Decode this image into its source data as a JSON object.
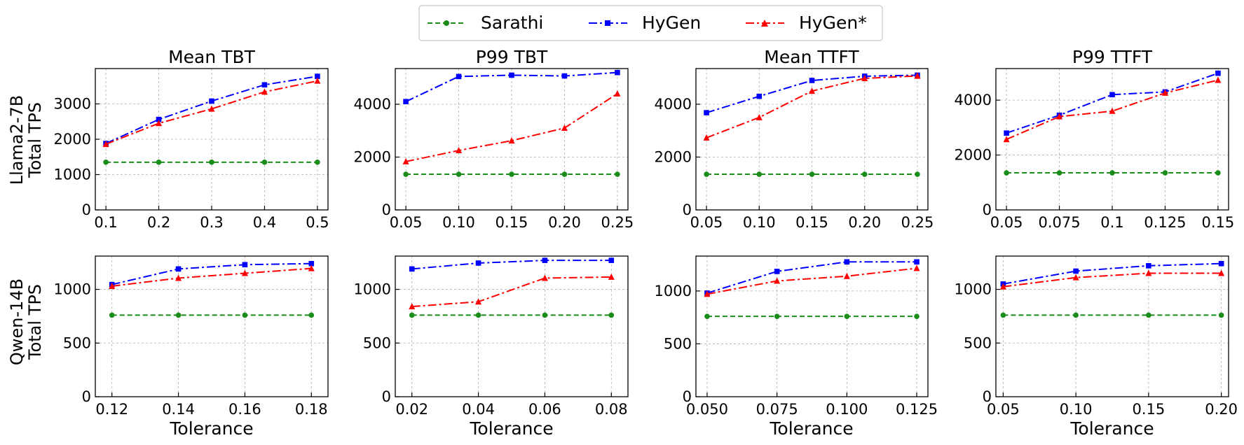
{
  "figure": {
    "xlabel": "Tolerance",
    "row_labels": [
      [
        "Llama2-7B",
        "Total TPS"
      ],
      [
        "Qwen-14B",
        "Total TPS"
      ]
    ],
    "column_titles": [
      "Mean TBT",
      "P99 TBT",
      "Mean TTFT",
      "P99 TTFT"
    ]
  },
  "legend": [
    {
      "name": "Sarathi",
      "color": "#1a8c1a",
      "marker": "circle",
      "dash": "dashed"
    },
    {
      "name": "HyGen",
      "color": "#0000ff",
      "marker": "square",
      "dash": "dashdot"
    },
    {
      "name": "HyGen*",
      "color": "#ff0000",
      "marker": "triangle",
      "dash": "dashdot"
    }
  ],
  "chart_data": [
    {
      "type": "line",
      "title": "Mean TBT",
      "ylabel": "Llama2-7B Total TPS",
      "xlabel": "",
      "x": [
        0.1,
        0.2,
        0.3,
        0.4,
        0.5
      ],
      "xticks": [
        "0.1",
        "0.2",
        "0.3",
        "0.4",
        "0.5"
      ],
      "yticks": [
        "0",
        "1000",
        "2000",
        "3000"
      ],
      "ylim": [
        0,
        4000
      ],
      "xlim": [
        0.08,
        0.52
      ],
      "series": [
        {
          "name": "Sarathi",
          "values": [
            1350,
            1350,
            1350,
            1350,
            1350
          ]
        },
        {
          "name": "HyGen",
          "values": [
            1880,
            2560,
            3080,
            3540,
            3780
          ]
        },
        {
          "name": "HyGen*",
          "values": [
            1860,
            2450,
            2860,
            3340,
            3650
          ]
        }
      ]
    },
    {
      "type": "line",
      "title": "P99 TBT",
      "ylabel": "",
      "xlabel": "",
      "x": [
        0.05,
        0.1,
        0.15,
        0.2,
        0.25
      ],
      "xticks": [
        "0.05",
        "0.10",
        "0.15",
        "0.20",
        "0.25"
      ],
      "yticks": [
        "0",
        "2000",
        "4000"
      ],
      "ylim": [
        0,
        5350
      ],
      "xlim": [
        0.04,
        0.26
      ],
      "series": [
        {
          "name": "Sarathi",
          "values": [
            1350,
            1350,
            1350,
            1350,
            1350
          ]
        },
        {
          "name": "HyGen",
          "values": [
            4100,
            5050,
            5100,
            5070,
            5200
          ]
        },
        {
          "name": "HyGen*",
          "values": [
            1830,
            2250,
            2620,
            3100,
            4400
          ]
        }
      ]
    },
    {
      "type": "line",
      "title": "Mean TTFT",
      "ylabel": "",
      "xlabel": "",
      "x": [
        0.05,
        0.1,
        0.15,
        0.2,
        0.25
      ],
      "xticks": [
        "0.05",
        "0.10",
        "0.15",
        "0.20",
        "0.25"
      ],
      "yticks": [
        "0",
        "2000",
        "4000"
      ],
      "ylim": [
        0,
        5350
      ],
      "xlim": [
        0.04,
        0.26
      ],
      "series": [
        {
          "name": "Sarathi",
          "values": [
            1350,
            1350,
            1350,
            1350,
            1350
          ]
        },
        {
          "name": "HyGen",
          "values": [
            3680,
            4300,
            4900,
            5060,
            5100
          ]
        },
        {
          "name": "HyGen*",
          "values": [
            2730,
            3500,
            4500,
            4980,
            5070
          ]
        }
      ]
    },
    {
      "type": "line",
      "title": "P99 TTFT",
      "ylabel": "",
      "xlabel": "",
      "x": [
        0.05,
        0.075,
        0.1,
        0.125,
        0.15
      ],
      "xticks": [
        "0.05",
        "0.075",
        "0.1",
        "0.125",
        "0.15"
      ],
      "yticks": [
        "0",
        "2000",
        "4000"
      ],
      "ylim": [
        0,
        5150
      ],
      "xlim": [
        0.045,
        0.155
      ],
      "series": [
        {
          "name": "Sarathi",
          "values": [
            1350,
            1350,
            1350,
            1350,
            1350
          ]
        },
        {
          "name": "HyGen",
          "values": [
            2800,
            3450,
            4200,
            4300,
            4980
          ]
        },
        {
          "name": "HyGen*",
          "values": [
            2570,
            3400,
            3600,
            4260,
            4730
          ]
        }
      ]
    },
    {
      "type": "line",
      "title": "",
      "ylabel": "Qwen-14B Total TPS",
      "xlabel": "Tolerance",
      "x": [
        0.12,
        0.14,
        0.16,
        0.18
      ],
      "xticks": [
        "0.12",
        "0.14",
        "0.16",
        "0.18"
      ],
      "yticks": [
        "0",
        "500",
        "1000"
      ],
      "ylim": [
        0,
        1310
      ],
      "xlim": [
        0.115,
        0.185
      ],
      "series": [
        {
          "name": "Sarathi",
          "values": [
            760,
            760,
            760,
            760
          ]
        },
        {
          "name": "HyGen",
          "values": [
            1045,
            1190,
            1230,
            1240
          ]
        },
        {
          "name": "HyGen*",
          "values": [
            1030,
            1105,
            1150,
            1195
          ]
        }
      ]
    },
    {
      "type": "line",
      "title": "",
      "ylabel": "",
      "xlabel": "Tolerance",
      "x": [
        0.02,
        0.04,
        0.06,
        0.08
      ],
      "xticks": [
        "0.02",
        "0.04",
        "0.06",
        "0.08"
      ],
      "yticks": [
        "0",
        "500",
        "1000"
      ],
      "ylim": [
        0,
        1310
      ],
      "xlim": [
        0.015,
        0.085
      ],
      "series": [
        {
          "name": "Sarathi",
          "values": [
            760,
            760,
            760,
            760
          ]
        },
        {
          "name": "HyGen",
          "values": [
            1190,
            1245,
            1270,
            1270
          ]
        },
        {
          "name": "HyGen*",
          "values": [
            840,
            885,
            1105,
            1115
          ]
        }
      ]
    },
    {
      "type": "line",
      "title": "",
      "ylabel": "",
      "xlabel": "Tolerance",
      "x": [
        0.05,
        0.075,
        0.1,
        0.125
      ],
      "xticks": [
        "0.050",
        "0.075",
        "0.100",
        "0.125"
      ],
      "yticks": [
        "0",
        "500",
        "1000"
      ],
      "ylim": [
        0,
        1330
      ],
      "xlim": [
        0.046,
        0.129
      ],
      "series": [
        {
          "name": "Sarathi",
          "values": [
            760,
            760,
            760,
            760
          ]
        },
        {
          "name": "HyGen",
          "values": [
            980,
            1185,
            1275,
            1275
          ]
        },
        {
          "name": "HyGen*",
          "values": [
            970,
            1095,
            1140,
            1215
          ]
        }
      ]
    },
    {
      "type": "line",
      "title": "",
      "ylabel": "",
      "xlabel": "Tolerance",
      "x": [
        0.05,
        0.1,
        0.15,
        0.2
      ],
      "xticks": [
        "0.05",
        "0.10",
        "0.15",
        "0.20"
      ],
      "yticks": [
        "0",
        "500",
        "1000"
      ],
      "ylim": [
        0,
        1310
      ],
      "xlim": [
        0.045,
        0.205
      ],
      "series": [
        {
          "name": "Sarathi",
          "values": [
            760,
            760,
            760,
            760
          ]
        },
        {
          "name": "HyGen",
          "values": [
            1050,
            1170,
            1220,
            1240
          ]
        },
        {
          "name": "HyGen*",
          "values": [
            1025,
            1110,
            1150,
            1150
          ]
        }
      ]
    }
  ]
}
